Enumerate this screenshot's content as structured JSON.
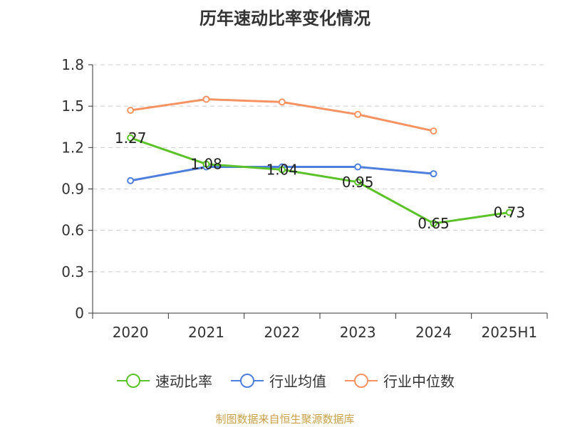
{
  "title": "历年速动比率变化情况",
  "source": "制图数据来自恒生聚源数据库",
  "chart_data": {
    "type": "line",
    "categories": [
      "2020",
      "2021",
      "2022",
      "2023",
      "2024",
      "2025H1"
    ],
    "ylim": [
      0,
      1.8
    ],
    "yticks": [
      "0",
      "0.3",
      "0.6",
      "0.9",
      "1.2",
      "1.5",
      "1.8"
    ],
    "grid": true,
    "legend_position": "bottom",
    "series": [
      {
        "name": "速动比率",
        "color": "#5cc22a",
        "show_labels": true,
        "values": [
          1.27,
          1.08,
          1.04,
          0.95,
          0.65,
          0.73
        ],
        "labels": [
          "1.27",
          "1.08",
          "1.04",
          "0.95",
          "0.65",
          "0.73"
        ]
      },
      {
        "name": "行业均值",
        "color": "#4f7fdc",
        "show_labels": false,
        "values": [
          0.96,
          1.06,
          1.06,
          1.06,
          1.01,
          null
        ]
      },
      {
        "name": "行业中位数",
        "color": "#f59462",
        "show_labels": false,
        "values": [
          1.47,
          1.55,
          1.53,
          1.44,
          1.32,
          null
        ]
      }
    ]
  }
}
